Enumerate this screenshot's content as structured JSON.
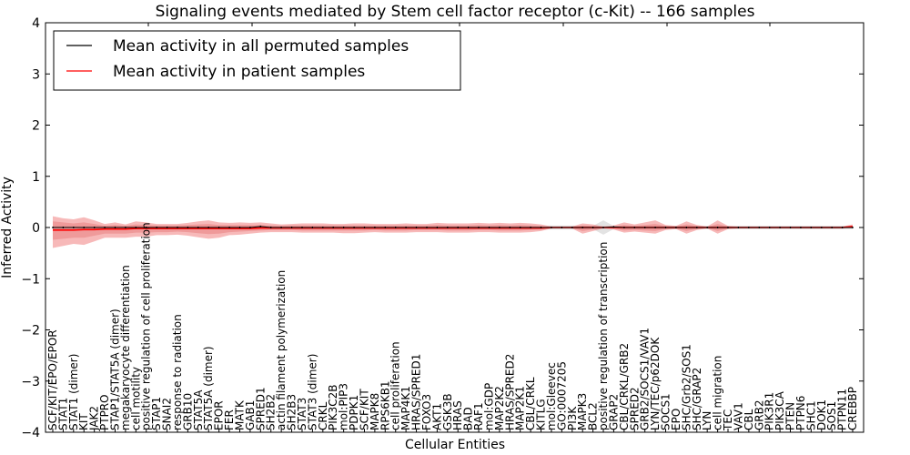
{
  "chart_data": {
    "type": "line",
    "title": "Signaling events mediated by Stem cell factor receptor (c-Kit) -- 166 samples",
    "xlabel": "Cellular Entities",
    "ylabel": "Inferred Activity",
    "ylim": [
      -4,
      4
    ],
    "yticks": [
      4,
      3,
      2,
      1,
      0,
      -1,
      -2,
      -3,
      -4
    ],
    "ytick_labels": [
      "4",
      "3",
      "2",
      "1",
      "0",
      "−1",
      "−2",
      "−3",
      "−4"
    ],
    "grid": false,
    "legend": {
      "placement": "top-left",
      "entries": [
        {
          "label": "Mean activity in all permuted samples",
          "color": "#000000"
        },
        {
          "label": "Mean activity in patient samples",
          "color": "#ff0000"
        }
      ]
    },
    "colors": {
      "permuted_line": "#000000",
      "patient_line": "#ff0000",
      "patient_band": "#f08080",
      "permuted_band": "#c8c8c8"
    },
    "categories": [
      "SCF/KIT/EPO/EPOR",
      "STAT1",
      "STAT1 (dimer)",
      "KIT",
      "JAK2",
      "PTPRO",
      "STAP1/STAT5A (dimer)",
      "megakaryocyte differentiation",
      "cell motility",
      "positive regulation of cell proliferation",
      "STAP1",
      "SNAI2",
      "response to radiation",
      "GRB10",
      "STAT5A",
      "STAT5A (dimer)",
      "EPOR",
      "FER",
      "MATK",
      "GAB1",
      "SPRED1",
      "SH2B2",
      "actin filament polymerization",
      "SH2B3",
      "STAT3",
      "STAT3 (dimer)",
      "CRKL",
      "PIK3C2B",
      "mol:PIP3",
      "PDPK1",
      "SCF/KIT",
      "MAPK8",
      "RPS6KB1",
      "cell proliferation",
      "MAP4K1",
      "HRAS/SPRED1",
      "FOXO3",
      "AKT1",
      "GSK3B",
      "HRAS",
      "BAD",
      "RAF1",
      "mol:GDP",
      "MAP2K2",
      "HRAS/SPRED2",
      "MAP2K1",
      "CBL/CRKL",
      "KITLG",
      "mol:Gleevec",
      "GO:0007205",
      "PI3K",
      "MAPK3",
      "BCL2",
      "positive regulation of transcription",
      "GRAP2",
      "CBL/CRKL/GRB2",
      "SPRED2",
      "GRB2/SOCS1/VAV1",
      "LYN/TEC/p62DOK",
      "SOCS1",
      "EPO",
      "SHC/Grb2/SOS1",
      "SHC/GRAP2",
      "LYN",
      "cell migration",
      "TEC",
      "VAV1",
      "CBL",
      "GRB2",
      "PIK3R1",
      "PIK3CA",
      "PTEN",
      "PTPN6",
      "SHC1",
      "DOK1",
      "SOS1",
      "PTPN11",
      "CREBBP"
    ],
    "series": [
      {
        "name": "Mean activity in all permuted samples",
        "values": [
          0.0,
          0.0,
          0.0,
          0.0,
          0.0,
          0.0,
          0.0,
          0.0,
          0.0,
          0.0,
          0.0,
          0.0,
          0.0,
          0.0,
          0.0,
          0.0,
          0.0,
          0.0,
          0.0,
          0.0,
          0.02,
          0.0,
          0.0,
          0.0,
          0.0,
          0.0,
          0.0,
          0.0,
          0.0,
          0.0,
          0.0,
          0.0,
          0.0,
          0.0,
          0.0,
          0.0,
          0.0,
          0.0,
          0.0,
          0.0,
          0.0,
          0.0,
          0.0,
          0.0,
          0.0,
          0.0,
          0.0,
          0.0,
          0.0,
          0.0,
          0.0,
          0.0,
          0.0,
          0.0,
          0.01,
          0.0,
          0.0,
          0.0,
          0.0,
          0.0,
          0.0,
          0.0,
          0.0,
          0.0,
          0.0,
          0.0,
          0.0,
          0.0,
          0.0,
          0.0,
          0.0,
          0.0,
          0.0,
          0.0,
          0.0,
          0.0,
          0.0,
          0.0
        ]
      },
      {
        "name": "Mean activity in patient samples",
        "values": [
          -0.05,
          -0.05,
          -0.05,
          -0.04,
          -0.04,
          -0.03,
          -0.03,
          -0.03,
          -0.02,
          -0.02,
          -0.02,
          -0.02,
          -0.02,
          -0.02,
          -0.02,
          -0.02,
          -0.02,
          -0.02,
          -0.02,
          -0.02,
          -0.01,
          -0.01,
          -0.01,
          -0.01,
          -0.01,
          -0.01,
          -0.01,
          -0.01,
          -0.01,
          -0.01,
          -0.01,
          -0.01,
          -0.01,
          -0.01,
          -0.01,
          -0.01,
          -0.01,
          -0.01,
          -0.01,
          -0.01,
          -0.01,
          -0.01,
          -0.01,
          -0.01,
          -0.01,
          -0.01,
          -0.01,
          -0.01,
          0.0,
          0.0,
          0.0,
          0.0,
          0.0,
          0.0,
          0.0,
          0.0,
          0.0,
          0.0,
          0.0,
          0.0,
          0.0,
          0.0,
          0.0,
          0.0,
          0.0,
          0.0,
          0.0,
          0.0,
          0.0,
          0.0,
          0.0,
          0.0,
          0.0,
          0.0,
          0.0,
          0.0,
          0.0,
          0.02
        ]
      }
    ],
    "patient_band_outer": {
      "upper": [
        0.22,
        0.18,
        0.16,
        0.2,
        0.14,
        0.07,
        0.1,
        0.06,
        0.12,
        0.1,
        0.07,
        0.07,
        0.07,
        0.09,
        0.12,
        0.14,
        0.1,
        0.09,
        0.1,
        0.09,
        0.1,
        0.08,
        0.06,
        0.07,
        0.08,
        0.08,
        0.08,
        0.07,
        0.07,
        0.08,
        0.08,
        0.07,
        0.07,
        0.07,
        0.08,
        0.07,
        0.07,
        0.09,
        0.08,
        0.08,
        0.08,
        0.09,
        0.08,
        0.09,
        0.08,
        0.09,
        0.08,
        0.06,
        0.02,
        0.02,
        0.02,
        0.08,
        0.06,
        0.02,
        0.04,
        0.1,
        0.06,
        0.1,
        0.14,
        0.05,
        0.03,
        0.12,
        0.05,
        0.02,
        0.14,
        0.03,
        0.02,
        0.02,
        0.02,
        0.02,
        0.02,
        0.02,
        0.02,
        0.02,
        0.02,
        0.02,
        0.02,
        0.06
      ],
      "lower": [
        -0.4,
        -0.36,
        -0.32,
        -0.34,
        -0.27,
        -0.2,
        -0.2,
        -0.2,
        -0.18,
        -0.18,
        -0.15,
        -0.15,
        -0.14,
        -0.16,
        -0.19,
        -0.22,
        -0.2,
        -0.15,
        -0.14,
        -0.12,
        -0.1,
        -0.09,
        -0.09,
        -0.09,
        -0.1,
        -0.1,
        -0.1,
        -0.1,
        -0.11,
        -0.11,
        -0.1,
        -0.09,
        -0.1,
        -0.1,
        -0.1,
        -0.09,
        -0.09,
        -0.09,
        -0.1,
        -0.1,
        -0.1,
        -0.09,
        -0.09,
        -0.1,
        -0.1,
        -0.1,
        -0.09,
        -0.07,
        -0.02,
        -0.02,
        -0.02,
        -0.12,
        -0.07,
        -0.02,
        -0.04,
        -0.1,
        -0.08,
        -0.1,
        -0.12,
        -0.05,
        -0.03,
        -0.12,
        -0.05,
        -0.02,
        -0.12,
        -0.03,
        -0.02,
        -0.02,
        -0.02,
        -0.02,
        -0.02,
        -0.02,
        -0.02,
        -0.02,
        -0.02,
        -0.02,
        -0.02,
        -0.01
      ]
    },
    "patient_band_inner": {
      "upper": [
        0.12,
        0.1,
        0.08,
        0.1,
        0.07,
        0.03,
        0.05,
        0.03,
        0.06,
        0.05,
        0.04,
        0.04,
        0.04,
        0.05,
        0.06,
        0.07,
        0.05,
        0.05,
        0.05,
        0.05,
        0.05,
        0.04,
        0.03,
        0.04,
        0.04,
        0.04,
        0.04,
        0.04,
        0.04,
        0.04,
        0.04,
        0.04,
        0.04,
        0.04,
        0.04,
        0.04,
        0.04,
        0.05,
        0.04,
        0.04,
        0.04,
        0.05,
        0.04,
        0.05,
        0.04,
        0.05,
        0.04,
        0.03,
        0.01,
        0.01,
        0.01,
        0.04,
        0.03,
        0.01,
        0.02,
        0.05,
        0.03,
        0.05,
        0.07,
        0.03,
        0.02,
        0.06,
        0.03,
        0.01,
        0.07,
        0.02,
        0.01,
        0.01,
        0.01,
        0.01,
        0.01,
        0.01,
        0.01,
        0.01,
        0.01,
        0.01,
        0.01,
        0.04
      ],
      "lower": [
        -0.24,
        -0.22,
        -0.2,
        -0.2,
        -0.16,
        -0.12,
        -0.12,
        -0.12,
        -0.1,
        -0.1,
        -0.09,
        -0.09,
        -0.08,
        -0.09,
        -0.11,
        -0.13,
        -0.12,
        -0.09,
        -0.08,
        -0.07,
        -0.06,
        -0.05,
        -0.05,
        -0.05,
        -0.06,
        -0.06,
        -0.06,
        -0.06,
        -0.06,
        -0.06,
        -0.06,
        -0.05,
        -0.06,
        -0.06,
        -0.06,
        -0.05,
        -0.05,
        -0.05,
        -0.06,
        -0.06,
        -0.06,
        -0.05,
        -0.05,
        -0.06,
        -0.06,
        -0.06,
        -0.05,
        -0.04,
        -0.01,
        -0.01,
        -0.01,
        -0.07,
        -0.04,
        -0.01,
        -0.02,
        -0.06,
        -0.05,
        -0.06,
        -0.07,
        -0.03,
        -0.02,
        -0.07,
        -0.03,
        -0.01,
        -0.07,
        -0.02,
        -0.01,
        -0.01,
        -0.01,
        -0.01,
        -0.01,
        -0.01,
        -0.01,
        -0.01,
        -0.01,
        -0.01,
        -0.01,
        0.0
      ]
    },
    "permuted_band": {
      "upper": [
        0.03,
        0.03,
        0.03,
        0.03,
        0.03,
        0.03,
        0.03,
        0.03,
        0.03,
        0.03,
        0.03,
        0.03,
        0.03,
        0.03,
        0.03,
        0.03,
        0.03,
        0.03,
        0.03,
        0.03,
        0.03,
        0.03,
        0.03,
        0.03,
        0.03,
        0.03,
        0.03,
        0.03,
        0.03,
        0.03,
        0.03,
        0.03,
        0.03,
        0.03,
        0.03,
        0.03,
        0.03,
        0.03,
        0.03,
        0.03,
        0.03,
        0.03,
        0.03,
        0.03,
        0.03,
        0.03,
        0.03,
        0.03,
        0.04,
        0.04,
        0.04,
        0.03,
        0.03,
        0.14,
        0.03,
        0.03,
        0.03,
        0.03,
        0.03,
        0.03,
        0.03,
        0.03,
        0.03,
        0.03,
        0.03,
        0.03,
        0.03,
        0.03,
        0.03,
        0.03,
        0.03,
        0.03,
        0.03,
        0.03,
        0.03,
        0.03,
        0.03,
        0.03
      ],
      "lower": [
        -0.03,
        -0.03,
        -0.03,
        -0.03,
        -0.03,
        -0.03,
        -0.03,
        -0.03,
        -0.03,
        -0.03,
        -0.03,
        -0.03,
        -0.03,
        -0.03,
        -0.03,
        -0.03,
        -0.03,
        -0.03,
        -0.03,
        -0.03,
        -0.03,
        -0.03,
        -0.03,
        -0.03,
        -0.03,
        -0.03,
        -0.03,
        -0.03,
        -0.03,
        -0.03,
        -0.03,
        -0.03,
        -0.03,
        -0.03,
        -0.03,
        -0.03,
        -0.03,
        -0.03,
        -0.03,
        -0.03,
        -0.03,
        -0.03,
        -0.03,
        -0.03,
        -0.03,
        -0.03,
        -0.03,
        -0.03,
        -0.04,
        -0.04,
        -0.04,
        -0.03,
        -0.03,
        -0.14,
        -0.03,
        -0.03,
        -0.03,
        -0.03,
        -0.03,
        -0.03,
        -0.03,
        -0.03,
        -0.03,
        -0.03,
        -0.03,
        -0.03,
        -0.03,
        -0.03,
        -0.03,
        -0.03,
        -0.03,
        -0.03,
        -0.03,
        -0.03,
        -0.03,
        -0.03,
        -0.03,
        -0.03
      ]
    }
  }
}
